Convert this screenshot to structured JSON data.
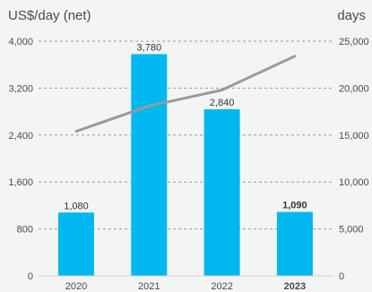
{
  "chart_data": {
    "type": "bar",
    "categories": [
      "2020",
      "2021",
      "2022",
      "2023"
    ],
    "bold_categories": [
      "2023"
    ],
    "left_axis": {
      "label": "US$/day (net)",
      "ticks": [
        0,
        800,
        1600,
        2400,
        3200,
        4000
      ],
      "tick_labels": [
        "0",
        "800",
        "1,600",
        "2,400",
        "3,200",
        "4,000"
      ],
      "range": [
        0,
        4000
      ]
    },
    "right_axis": {
      "label": "days",
      "ticks": [
        0,
        5000,
        10000,
        15000,
        20000,
        25000
      ],
      "tick_labels": [
        "0",
        "5,000",
        "10,000",
        "15,000",
        "20,000",
        "25,000"
      ],
      "range": [
        0,
        25000
      ]
    },
    "series": [
      {
        "type": "bar",
        "axis": "left",
        "values": [
          1080,
          3780,
          2840,
          1090
        ],
        "labels": [
          "1,080",
          "3,780",
          "2,840",
          "1,090"
        ],
        "bold_labels": [
          false,
          false,
          false,
          true
        ]
      },
      {
        "type": "line",
        "axis": "right",
        "values": [
          15400,
          18100,
          19800,
          23400
        ]
      }
    ],
    "grid": "horizontal-dashed"
  },
  "colors": {
    "bar": "#00b8ef",
    "line": "#9a9a9a",
    "grid": "#9a9a9a",
    "text": "#4a4a4a",
    "background": "#f3f5f4"
  }
}
